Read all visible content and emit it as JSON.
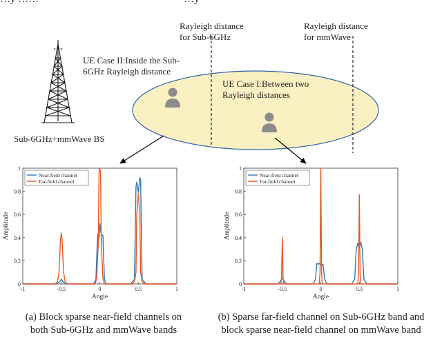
{
  "top_cut_text": "…y ……                                                        …y",
  "labels": {
    "rayleigh_sub6": "Rayleigh distance\nfor Sub-6GHz",
    "rayleigh_mm": "Rayleigh distance\nfor mmWave",
    "ue_case2": "UE Case II:Inside the Sub-\n6GHz Rayleigh distance",
    "ue_case1": "UE Case I:Between two\nRayleigh distances",
    "bs": "Sub-6GHz+mmWave BS"
  },
  "captions": {
    "a": "(a) Block sparse near-field channels on\nboth Sub-6GHz and mmWave bands",
    "b": "(b) Sparse far-field channel on Sub-6GHz band and\nblock sparse near-field channel on mmWave band"
  },
  "colors": {
    "near_field": "#2f78b5",
    "far_field": "#e8571f",
    "ellipse_fill": "#fbf0c2",
    "ellipse_stroke": "#2e63b0",
    "user_icon": "#8c8c8c"
  },
  "chart_data": [
    {
      "type": "line",
      "xlabel": "Angle",
      "ylabel": "Amplitude",
      "xlim": [
        -1,
        1
      ],
      "ylim": [
        0,
        1
      ],
      "xticks": [
        "-1",
        "-0.5",
        "0",
        "0.5",
        "1"
      ],
      "yticks": [
        "0",
        "0.2",
        "0.4",
        "0.6",
        "0.8",
        "1"
      ],
      "legend_position": "top-left",
      "series": [
        {
          "name": "Near-field channel",
          "color": "#2f78b5",
          "x": [
            -1,
            -0.56,
            -0.52,
            -0.5,
            -0.48,
            -0.44,
            -0.08,
            -0.05,
            -0.03,
            -0.02,
            -0.01,
            0,
            0.02,
            0.04,
            0.06,
            0.08,
            0.4,
            0.45,
            0.47,
            0.48,
            0.5,
            0.52,
            0.53,
            0.55,
            0.6,
            1
          ],
          "y": [
            0,
            0,
            0.02,
            0.04,
            0.02,
            0,
            0,
            0.04,
            0.41,
            0.44,
            0.4,
            0.52,
            0.42,
            0.42,
            0.04,
            0,
            0,
            0.04,
            0.84,
            0.88,
            0.79,
            0.92,
            0.9,
            0.04,
            0,
            0
          ]
        },
        {
          "name": "Far-field channel",
          "color": "#e8571f",
          "x": [
            -1,
            -0.58,
            -0.55,
            -0.53,
            -0.51,
            -0.5,
            -0.49,
            -0.47,
            -0.45,
            -0.42,
            -0.06,
            -0.04,
            -0.02,
            -0.01,
            0,
            0.01,
            0.02,
            0.04,
            0.06,
            0.42,
            0.45,
            0.47,
            0.48,
            0.5,
            0.52,
            0.53,
            0.55,
            0.58,
            1
          ],
          "y": [
            0,
            0,
            0.02,
            0.1,
            0.38,
            0.44,
            0.38,
            0.1,
            0.02,
            0,
            0,
            0.05,
            0.35,
            0.96,
            1.0,
            0.96,
            0.35,
            0.05,
            0,
            0,
            0.02,
            0.1,
            0.6,
            0.78,
            0.6,
            0.1,
            0.02,
            0,
            0
          ]
        }
      ]
    },
    {
      "type": "line",
      "xlabel": "Angle",
      "ylabel": "Amplitude",
      "xlim": [
        -1,
        1
      ],
      "ylim": [
        0,
        1
      ],
      "xticks": [
        "-1",
        "-0.5",
        "0",
        "0.5",
        "1"
      ],
      "yticks": [
        "0",
        "0.2",
        "0.4",
        "0.6",
        "0.8",
        "1"
      ],
      "legend_position": "top-left",
      "series": [
        {
          "name": "Near-field channel",
          "color": "#2f78b5",
          "x": [
            -1,
            -0.56,
            -0.53,
            -0.5,
            -0.47,
            -0.44,
            -0.1,
            -0.07,
            -0.05,
            -0.03,
            -0.01,
            0.01,
            0.03,
            0.05,
            0.08,
            0.4,
            0.44,
            0.46,
            0.48,
            0.5,
            0.52,
            0.54,
            0.56,
            0.6,
            1
          ],
          "y": [
            0,
            0,
            0.02,
            0.05,
            0.02,
            0,
            0,
            0.04,
            0.18,
            0.17,
            0.18,
            0.16,
            0.17,
            0.04,
            0,
            0,
            0.04,
            0.3,
            0.35,
            0.31,
            0.36,
            0.3,
            0.04,
            0,
            0
          ]
        },
        {
          "name": "Far-field channel",
          "color": "#e8571f",
          "x": [
            -1,
            -0.52,
            -0.51,
            -0.5,
            -0.49,
            -0.48,
            -0.02,
            -0.01,
            0,
            0.01,
            0.02,
            0.48,
            0.49,
            0.5,
            0.51,
            0.52,
            1
          ],
          "y": [
            0,
            0,
            0.05,
            0.4,
            0.05,
            0,
            0,
            0.1,
            1.0,
            0.1,
            0,
            0,
            0.08,
            0.77,
            0.08,
            0,
            0
          ]
        }
      ]
    }
  ]
}
